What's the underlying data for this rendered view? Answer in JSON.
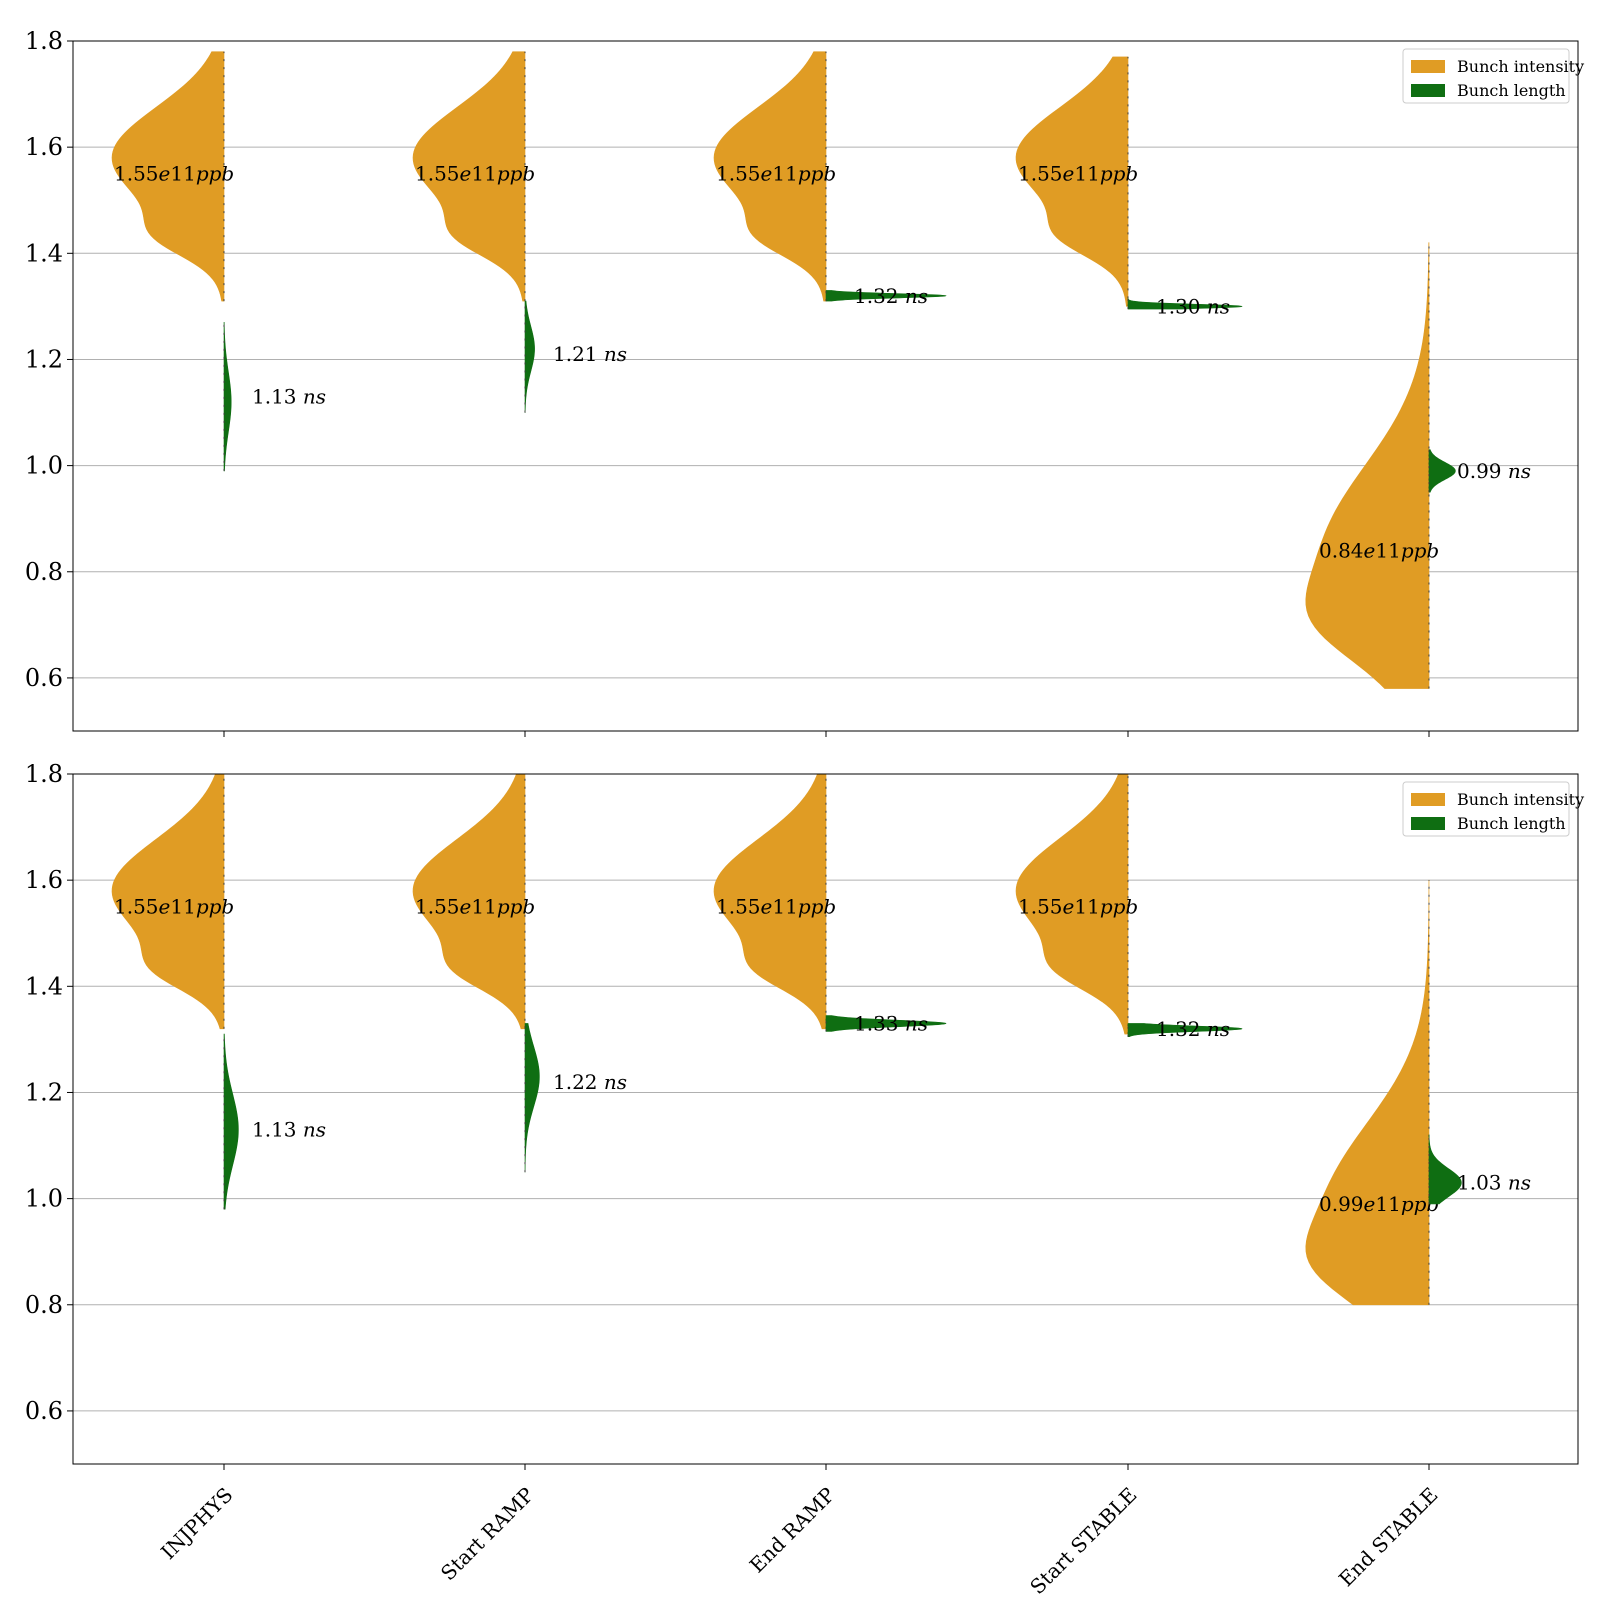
{
  "chart_data": [
    {
      "type": "violin",
      "panel": "top",
      "categories": [
        "INJPHYS",
        "Start RAMP",
        "End RAMP",
        "Start STABLE",
        "End STABLE"
      ],
      "ylim": [
        0.5,
        1.8
      ],
      "yticks": [
        "0.6",
        "0.8",
        "1.0",
        "1.2",
        "1.4",
        "1.6",
        "1.8"
      ],
      "grid": "horizontal",
      "legend_position": "top-right",
      "series": [
        {
          "name": "Bunch intensity",
          "color": "#e09c24",
          "side": "left",
          "violins": [
            {
              "center": 1.58,
              "min": 1.31,
              "max": 1.78,
              "spread": 1.0,
              "shoulder": 1.43,
              "label": "1.55e11ppb",
              "label_y": 1.55
            },
            {
              "center": 1.58,
              "min": 1.31,
              "max": 1.78,
              "spread": 1.0,
              "shoulder": 1.43,
              "label": "1.55e11ppb",
              "label_y": 1.55
            },
            {
              "center": 1.58,
              "min": 1.31,
              "max": 1.78,
              "spread": 1.0,
              "shoulder": 1.43,
              "label": "1.55e11ppb",
              "label_y": 1.55
            },
            {
              "center": 1.58,
              "min": 1.3,
              "max": 1.77,
              "spread": 1.0,
              "shoulder": 1.43,
              "label": "1.55e11ppb",
              "label_y": 1.55
            },
            {
              "center": 0.83,
              "min": 0.58,
              "max": 1.42,
              "spread": 1.1,
              "shoulder": 0.7,
              "label": "0.84e11ppb",
              "label_y": 0.84
            }
          ]
        },
        {
          "name": "Bunch length",
          "color": "#0f6e12",
          "side": "right",
          "violins": [
            {
              "center": 1.12,
              "min": 0.99,
              "max": 1.27,
              "spread": 0.06,
              "label": "1.13",
              "label_unit": "ns",
              "label_y": 1.13
            },
            {
              "center": 1.22,
              "min": 1.1,
              "max": 1.31,
              "spread": 0.08,
              "label": "1.21",
              "label_unit": "ns",
              "label_y": 1.21
            },
            {
              "center": 1.32,
              "min": 1.31,
              "max": 1.33,
              "spread": 1.0,
              "label": "1.32",
              "label_unit": "ns",
              "label_y": 1.32
            },
            {
              "center": 1.3,
              "min": 1.295,
              "max": 1.315,
              "spread": 0.95,
              "label": "1.30",
              "label_unit": "ns",
              "label_y": 1.3
            },
            {
              "center": 0.99,
              "min": 0.95,
              "max": 1.03,
              "spread": 0.22,
              "label": "0.99",
              "label_unit": "ns",
              "label_y": 0.99
            }
          ]
        }
      ]
    },
    {
      "type": "violin",
      "panel": "bottom",
      "categories": [
        "INJPHYS",
        "Start RAMP",
        "End RAMP",
        "Start STABLE",
        "End STABLE"
      ],
      "ylim": [
        0.5,
        1.8
      ],
      "yticks": [
        "0.6",
        "0.8",
        "1.0",
        "1.2",
        "1.4",
        "1.6",
        "1.8"
      ],
      "grid": "horizontal",
      "legend_position": "top-right",
      "series": [
        {
          "name": "Bunch intensity",
          "color": "#e09c24",
          "side": "left",
          "violins": [
            {
              "center": 1.58,
              "min": 1.32,
              "max": 1.8,
              "spread": 1.0,
              "shoulder": 1.43,
              "label": "1.55e11ppb",
              "label_y": 1.55
            },
            {
              "center": 1.58,
              "min": 1.32,
              "max": 1.8,
              "spread": 1.0,
              "shoulder": 1.43,
              "label": "1.55e11ppb",
              "label_y": 1.55
            },
            {
              "center": 1.58,
              "min": 1.32,
              "max": 1.8,
              "spread": 1.0,
              "shoulder": 1.43,
              "label": "1.55e11ppb",
              "label_y": 1.55
            },
            {
              "center": 1.58,
              "min": 1.31,
              "max": 1.8,
              "spread": 1.0,
              "shoulder": 1.43,
              "label": "1.55e11ppb",
              "label_y": 1.55
            },
            {
              "center": 0.98,
              "min": 0.8,
              "max": 1.6,
              "spread": 1.1,
              "shoulder": 0.87,
              "label": "0.99e11ppb",
              "label_y": 0.99
            }
          ]
        },
        {
          "name": "Bunch length",
          "color": "#0f6e12",
          "side": "right",
          "violins": [
            {
              "center": 1.13,
              "min": 0.98,
              "max": 1.31,
              "spread": 0.12,
              "label": "1.13",
              "label_unit": "ns",
              "label_y": 1.13
            },
            {
              "center": 1.23,
              "min": 1.05,
              "max": 1.33,
              "spread": 0.12,
              "label": "1.22",
              "label_unit": "ns",
              "label_y": 1.22
            },
            {
              "center": 1.33,
              "min": 1.315,
              "max": 1.345,
              "spread": 1.0,
              "label": "1.33",
              "label_unit": "ns",
              "label_y": 1.33
            },
            {
              "center": 1.32,
              "min": 1.305,
              "max": 1.33,
              "spread": 0.95,
              "label": "1.32",
              "label_unit": "ns",
              "label_y": 1.32
            },
            {
              "center": 1.03,
              "min": 0.99,
              "max": 1.12,
              "spread": 0.27,
              "label": "1.03",
              "label_unit": "ns",
              "label_y": 1.03
            }
          ]
        }
      ]
    }
  ]
}
